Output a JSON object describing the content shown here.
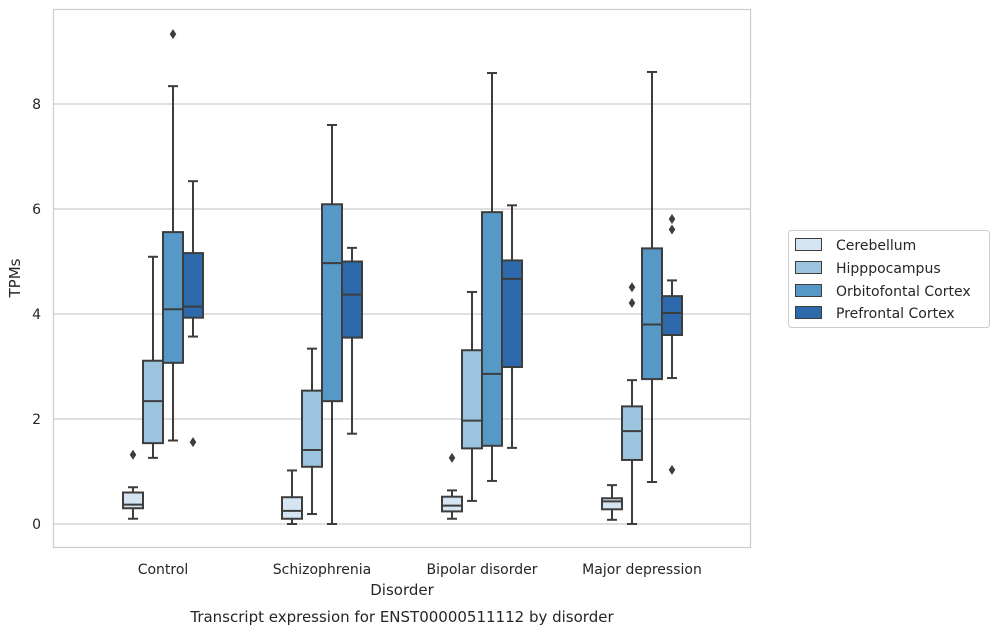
{
  "chart_data": {
    "type": "boxplot",
    "title": "Transcript expression for ENST00000511112 by disorder",
    "xlabel": "Disorder",
    "ylabel": "TPMs",
    "ylim": [
      -0.45,
      9.8
    ],
    "yticks": [
      0,
      2,
      4,
      6,
      8
    ],
    "grid": "horizontal",
    "legend_position": "right",
    "categories": [
      "Control",
      "Schizophrenia",
      "Bipolar disorder",
      "Major depression"
    ],
    "series": [
      {
        "name": "Cerebellum",
        "color": "#d5e4f3",
        "boxes": [
          {
            "whislo": 0.1,
            "q1": 0.3,
            "med": 0.37,
            "q3": 0.6,
            "whishi": 0.7,
            "fliers": [
              1.32
            ]
          },
          {
            "whislo": 0.0,
            "q1": 0.1,
            "med": 0.25,
            "q3": 0.51,
            "whishi": 1.02,
            "fliers": []
          },
          {
            "whislo": 0.1,
            "q1": 0.24,
            "med": 0.35,
            "q3": 0.52,
            "whishi": 0.64,
            "fliers": [
              1.26
            ]
          },
          {
            "whislo": 0.08,
            "q1": 0.28,
            "med": 0.43,
            "q3": 0.49,
            "whishi": 0.74,
            "fliers": []
          }
        ]
      },
      {
        "name": "Hipppocampus",
        "color": "#9dc4de",
        "boxes": [
          {
            "whislo": 1.26,
            "q1": 1.54,
            "med": 2.34,
            "q3": 3.11,
            "whishi": 5.09,
            "fliers": []
          },
          {
            "whislo": 0.19,
            "q1": 1.09,
            "med": 1.41,
            "q3": 2.54,
            "whishi": 3.34,
            "fliers": []
          },
          {
            "whislo": 0.44,
            "q1": 1.44,
            "med": 1.97,
            "q3": 3.31,
            "whishi": 4.42,
            "fliers": []
          },
          {
            "whislo": 0.0,
            "q1": 1.22,
            "med": 1.77,
            "q3": 2.24,
            "whishi": 2.74,
            "fliers": [
              4.21,
              4.51
            ]
          }
        ]
      },
      {
        "name": "Orbitofontal Cortex",
        "color": "#5698c6",
        "boxes": [
          {
            "whislo": 1.59,
            "q1": 3.07,
            "med": 4.09,
            "q3": 5.56,
            "whishi": 8.34,
            "fliers": [
              9.33
            ]
          },
          {
            "whislo": 0.0,
            "q1": 2.34,
            "med": 4.97,
            "q3": 6.09,
            "whishi": 7.6,
            "fliers": []
          },
          {
            "whislo": 0.82,
            "q1": 1.49,
            "med": 2.86,
            "q3": 5.94,
            "whishi": 8.59,
            "fliers": []
          },
          {
            "whislo": 0.8,
            "q1": 2.76,
            "med": 3.8,
            "q3": 5.25,
            "whishi": 8.61,
            "fliers": []
          }
        ]
      },
      {
        "name": "Prefrontal Cortex",
        "color": "#2d6aab",
        "boxes": [
          {
            "whislo": 3.57,
            "q1": 3.93,
            "med": 4.14,
            "q3": 5.16,
            "whishi": 6.53,
            "fliers": [
              1.56
            ]
          },
          {
            "whislo": 1.72,
            "q1": 3.55,
            "med": 4.37,
            "q3": 5.0,
            "whishi": 5.26,
            "fliers": []
          },
          {
            "whislo": 1.45,
            "q1": 2.99,
            "med": 4.67,
            "q3": 5.02,
            "whishi": 6.07,
            "fliers": []
          },
          {
            "whislo": 2.78,
            "q1": 3.6,
            "med": 4.02,
            "q3": 4.34,
            "whishi": 4.64,
            "fliers": [
              1.03,
              5.61,
              5.81
            ]
          }
        ]
      }
    ]
  },
  "style": {
    "line_color": "#3d3d3d",
    "grid_color": "#cccccc",
    "frame_color": "#cccccc"
  }
}
